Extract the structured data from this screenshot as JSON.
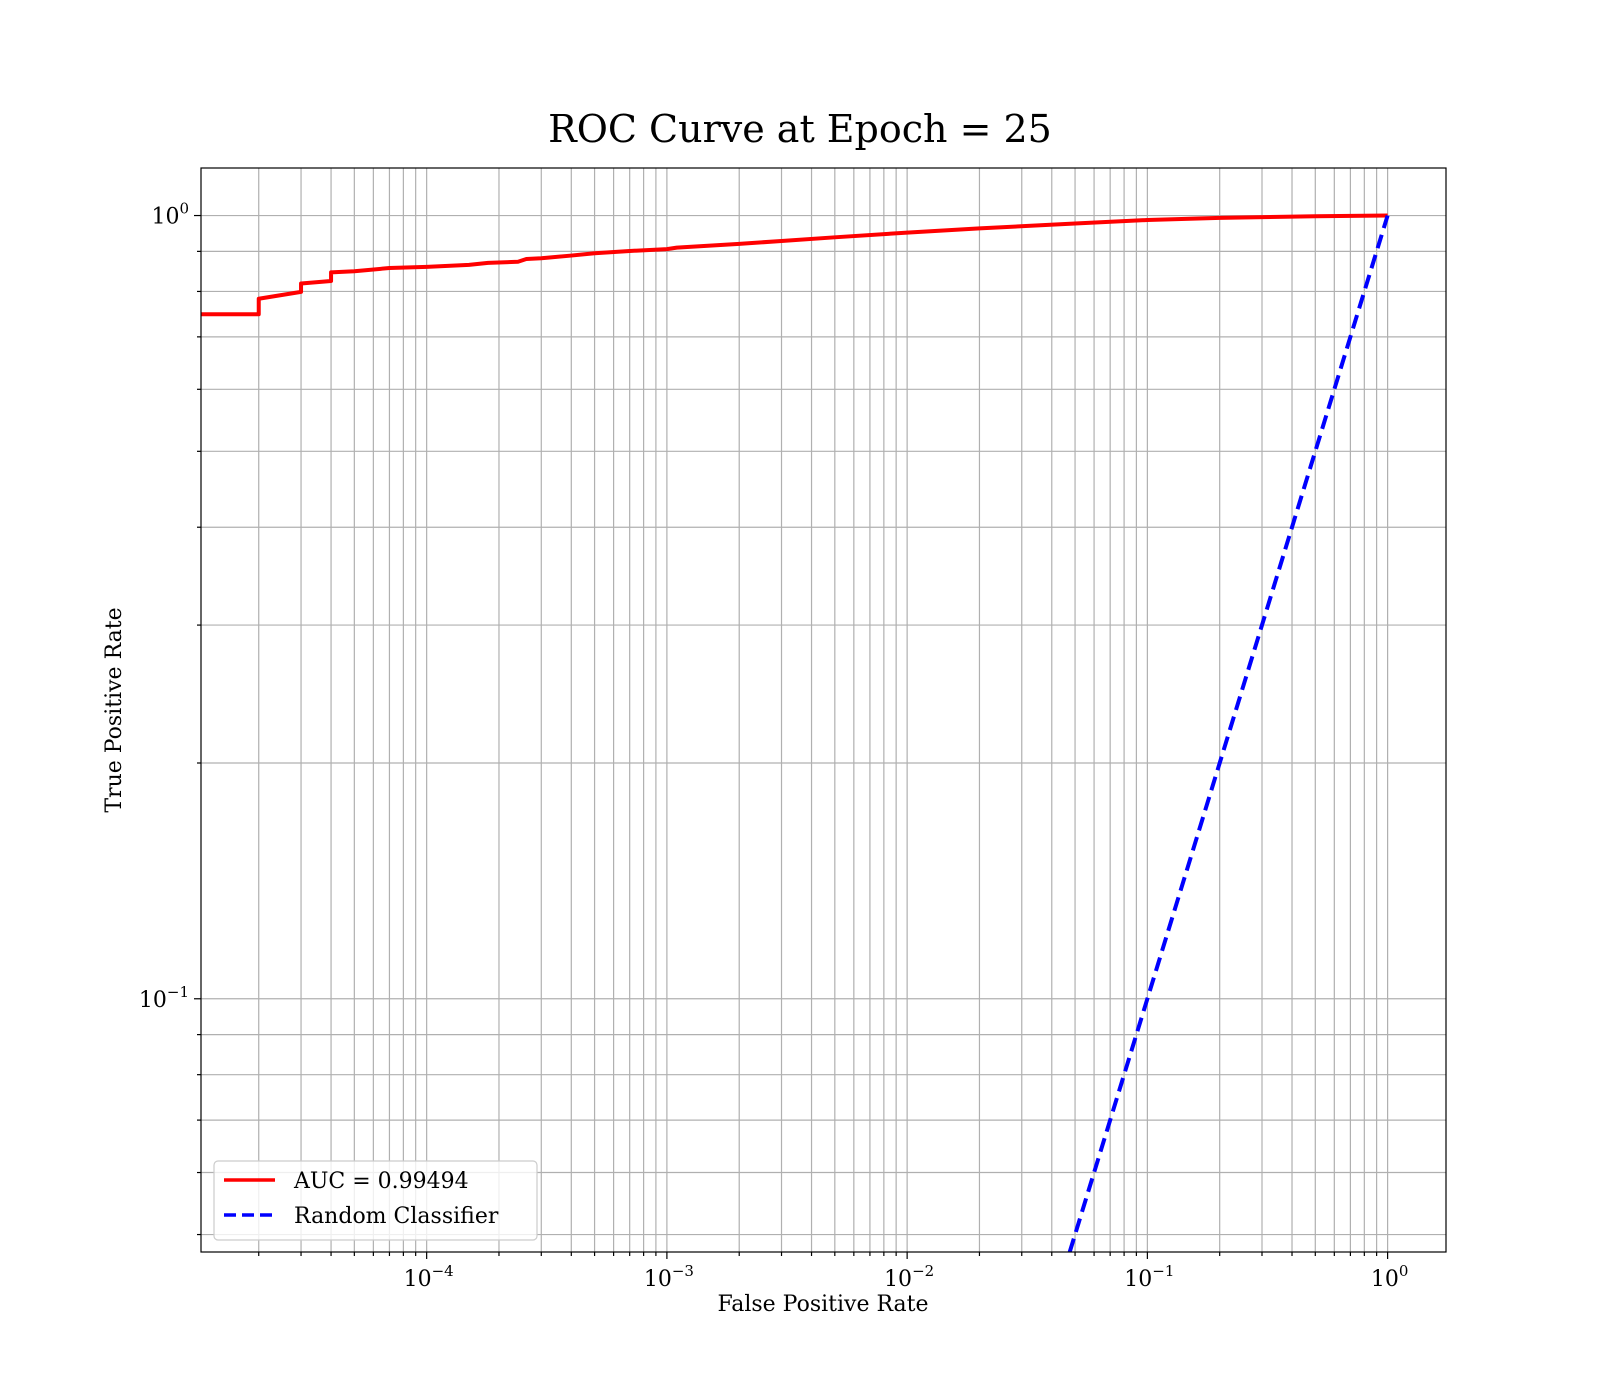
{
  "chart_data": {
    "type": "line",
    "title": "ROC Curve at Epoch = 25",
    "xlabel": "False Positive Rate",
    "ylabel": "True Positive Rate",
    "xscale": "log",
    "yscale": "log",
    "xlim": [
      1.15e-05,
      1.75
    ],
    "ylim": [
      0.0475,
      1.15
    ],
    "grid": "on (major and minor)",
    "legend_position": "lower-left",
    "x_ticks": [
      {
        "value": 0.0001,
        "base": "10",
        "exp": "−4"
      },
      {
        "value": 0.001,
        "base": "10",
        "exp": "−3"
      },
      {
        "value": 0.01,
        "base": "10",
        "exp": "−2"
      },
      {
        "value": 0.1,
        "base": "10",
        "exp": "−1"
      },
      {
        "value": 1,
        "base": "10",
        "exp": "0"
      }
    ],
    "y_ticks": [
      {
        "value": 1,
        "base": "10",
        "exp": "0"
      },
      {
        "value": 0.1,
        "base": "10",
        "exp": "−1"
      }
    ],
    "series": [
      {
        "name": "AUC = 0.99494",
        "color": "#ff0000",
        "style": "solid",
        "points": [
          [
            1.15e-05,
            0.748
          ],
          [
            2e-05,
            0.748
          ],
          [
            2e-05,
            0.783
          ],
          [
            3e-05,
            0.799
          ],
          [
            3e-05,
            0.819
          ],
          [
            4e-05,
            0.825
          ],
          [
            4e-05,
            0.846
          ],
          [
            5e-05,
            0.849
          ],
          [
            7e-05,
            0.857
          ],
          [
            0.0001,
            0.86
          ],
          [
            0.00015,
            0.865
          ],
          [
            0.00018,
            0.87
          ],
          [
            0.00024,
            0.873
          ],
          [
            0.00026,
            0.88
          ],
          [
            0.0003,
            0.882
          ],
          [
            0.0004,
            0.889
          ],
          [
            0.0005,
            0.895
          ],
          [
            0.0007,
            0.901
          ],
          [
            0.001,
            0.906
          ],
          [
            0.0011,
            0.91
          ],
          [
            0.002,
            0.92
          ],
          [
            0.003,
            0.928
          ],
          [
            0.005,
            0.938
          ],
          [
            0.01,
            0.951
          ],
          [
            0.02,
            0.963
          ],
          [
            0.05,
            0.977
          ],
          [
            0.1,
            0.987
          ],
          [
            0.2,
            0.993
          ],
          [
            0.5,
            0.998
          ],
          [
            1,
            1
          ]
        ]
      },
      {
        "name": "Random Classifier",
        "color": "#0000ff",
        "style": "dashed",
        "points": [
          [
            0.0475,
            0.0475
          ],
          [
            1,
            1
          ]
        ]
      }
    ]
  }
}
